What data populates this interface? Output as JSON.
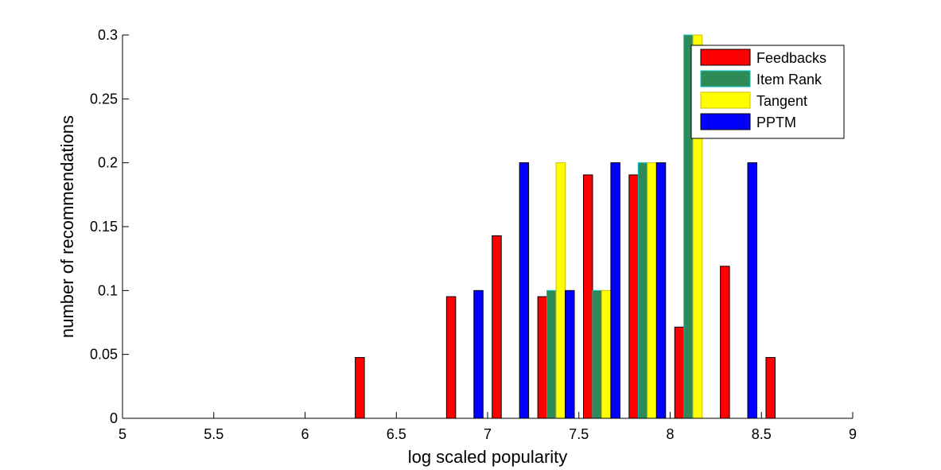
{
  "chart_data": {
    "type": "bar",
    "title": "",
    "xlabel": "log scaled popularity",
    "ylabel": "number of recommendations",
    "xlim": [
      5,
      9
    ],
    "ylim": [
      0,
      0.3
    ],
    "xticks": [
      "5",
      "5.5",
      "6",
      "6.5",
      "7",
      "7.5",
      "8",
      "8.5",
      "9"
    ],
    "yticks": [
      "0",
      "0.05",
      "0.1",
      "0.15",
      "0.2",
      "0.25",
      "0.3"
    ],
    "grid": false,
    "legend_position": "top-right",
    "bin_centers": [
      5.125,
      5.375,
      5.625,
      5.875,
      6.125,
      6.375,
      6.625,
      6.875,
      7.125,
      7.375,
      7.625,
      7.875,
      8.125,
      8.375,
      8.625,
      8.875
    ],
    "series": [
      {
        "name": "Feedbacks",
        "color": "#ff0000",
        "values": [
          0,
          0,
          0,
          0,
          0,
          0.0476,
          0,
          0.0952,
          0.1429,
          0.0952,
          0.1905,
          0.1905,
          0.0714,
          0.119,
          0.0476,
          0
        ]
      },
      {
        "name": "Item Rank",
        "color": "#2e8b57",
        "edge": "#00bfbf",
        "values": [
          0,
          0,
          0,
          0,
          0,
          0,
          0,
          0,
          0,
          0.1,
          0.1,
          0.2,
          0.3,
          0,
          0,
          0
        ]
      },
      {
        "name": "Tangent",
        "color": "#ffff00",
        "edge": "#d4c000",
        "values": [
          0,
          0,
          0,
          0,
          0,
          0,
          0,
          0,
          0,
          0.2,
          0.1,
          0.2,
          0.3,
          0,
          0,
          0
        ]
      },
      {
        "name": "PPTM",
        "color": "#0000ff",
        "values": [
          0,
          0,
          0,
          0,
          0,
          0,
          0,
          0.1,
          0.2,
          0.1,
          0.2,
          0.2,
          0,
          0.2,
          0,
          0
        ]
      }
    ]
  }
}
